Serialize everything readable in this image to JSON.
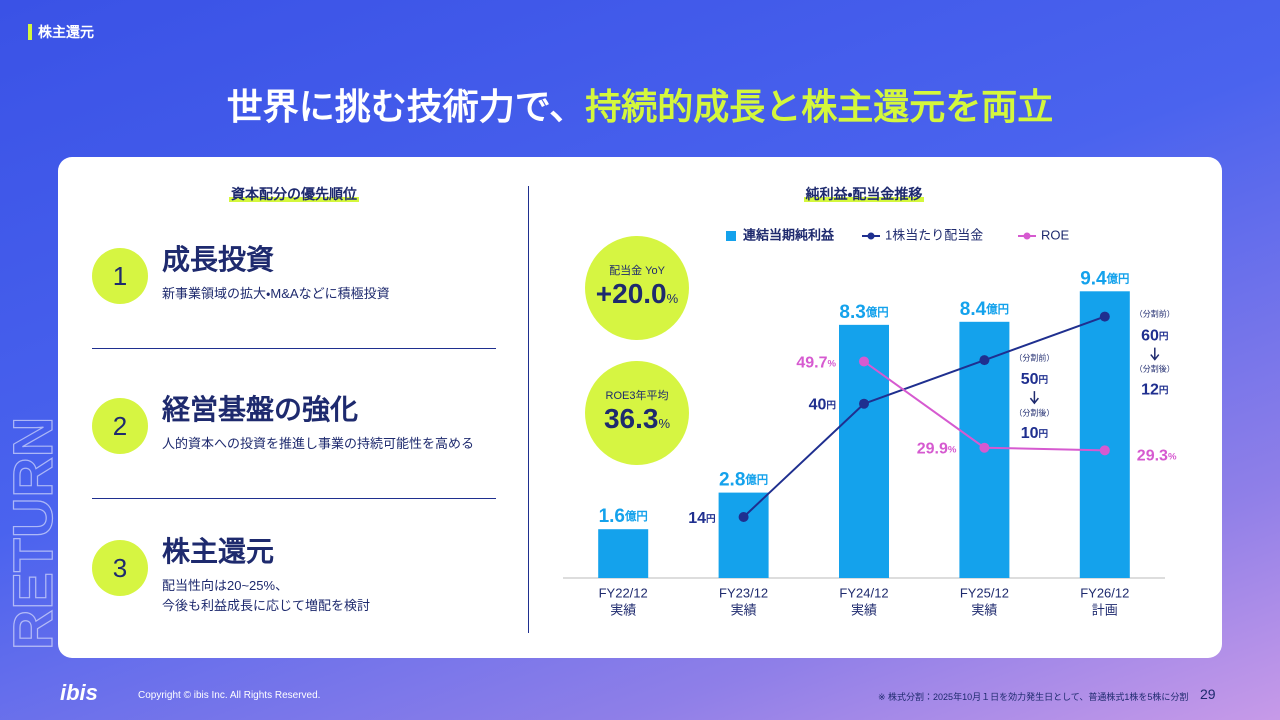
{
  "header": {
    "tag": "株主還元",
    "title": "世界に挑む技術力で、",
    "title_highlight": "持続的成長と株主還元を両立"
  },
  "watermark": "RETURN",
  "left": {
    "title": "資本配分の優先順位",
    "items": [
      {
        "number": "1",
        "title": "成長投資",
        "lines": [
          "新事業領域の拡大・M&Aなどに積極投資"
        ]
      },
      {
        "number": "2",
        "title": "経営基盤の強化",
        "lines": [
          "人的資本への投資を推進し事業の持続可能性を高める"
        ]
      },
      {
        "number": "3",
        "title": "株主還元",
        "lines": [
          "配当性向は20~25%、",
          "今後も利益成長に応じて増配を検討"
        ]
      }
    ]
  },
  "badges": [
    {
      "label": "配当金 YoY",
      "value": "+20.0",
      "unit": "%"
    },
    {
      "label": "ROE3年平均",
      "value": "36.3",
      "unit": "%"
    }
  ],
  "chart_data": {
    "type": "bar",
    "title": "純利益・配当金推移",
    "categories": [
      "FY22/12",
      "FY23/12",
      "FY24/12",
      "FY25/12",
      "FY26/12"
    ],
    "category_sublabels": [
      "実績",
      "実績",
      "実績",
      "実績",
      "計画"
    ],
    "ylim": [
      0,
      10
    ],
    "y2lim": [
      0,
      70
    ],
    "series": [
      {
        "name": "連結当期純利益",
        "type": "bar",
        "color": "#14a2ec",
        "unit": "億円",
        "values": [
          1.6,
          2.8,
          8.3,
          8.4,
          9.4
        ]
      },
      {
        "name": "1株当たり配当金",
        "type": "line",
        "axis": "y2",
        "color": "#1f2f8f",
        "unit": "円",
        "values": [
          null,
          14,
          40,
          50,
          60
        ],
        "split_before_label": "（分割前）",
        "split_after_label": "（分割後）",
        "split_after": [
          null,
          null,
          null,
          10,
          12
        ]
      },
      {
        "name": "ROE",
        "type": "line",
        "axis": "y2",
        "color": "#d65ad0",
        "unit": "%",
        "values": [
          null,
          null,
          49.7,
          29.9,
          29.3
        ]
      }
    ]
  },
  "footer": {
    "logo": "ibis",
    "copyright": "Copyright © ibis Inc. All Rights Reserved.",
    "note": "※ 株式分割：2025年10月１日を効力発生日として、普通株式1株を5株に分割",
    "page": "29"
  }
}
